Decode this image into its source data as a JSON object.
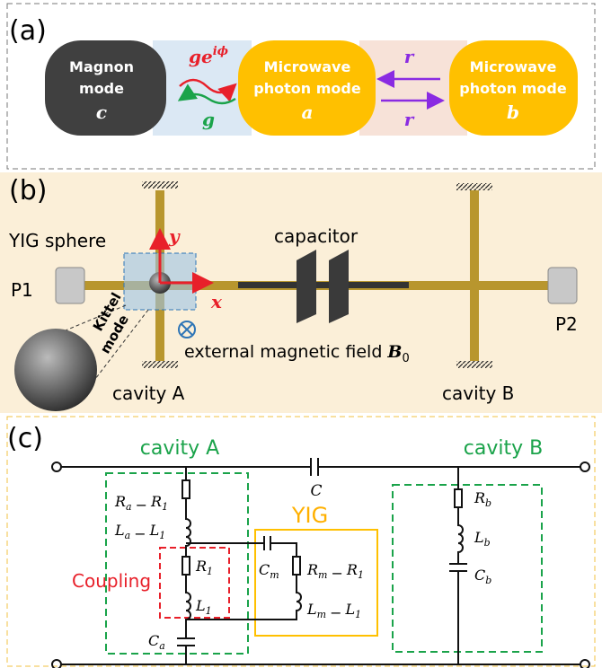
{
  "panel_a": {
    "label": "(a)",
    "nodes": [
      {
        "lines": [
          "Magnon",
          "mode"
        ],
        "symbol": "c"
      },
      {
        "lines": [
          "Microwave",
          "photon mode"
        ],
        "symbol": "a"
      },
      {
        "lines": [
          "Microwave",
          "photon mode"
        ],
        "symbol": "b"
      }
    ],
    "couplings": [
      {
        "base": "ge",
        "sup": "iϕ"
      },
      {
        "base": "g"
      },
      {
        "base": "r"
      },
      {
        "base": "r"
      }
    ]
  },
  "panel_b": {
    "label": "(b)",
    "yig": "YIG  sphere",
    "p1": "P1",
    "p2": "P2",
    "capacitor": "capacitor",
    "axis_y": "y",
    "axis_x": "x",
    "kittel": [
      "Kittel",
      "mode"
    ],
    "field": "external magnetic field ",
    "field_symbol": {
      "base": "B",
      "sub": "0"
    },
    "cavity_a": "cavity A",
    "cavity_b": "cavity  B"
  },
  "panel_c": {
    "label": "(c)",
    "cavity_a": "cavity A",
    "cavity_b": "cavity B",
    "yig": "YIG",
    "coupling": "Coupling",
    "capacitor": "C",
    "components": [
      {
        "terms": [
          [
            "R",
            "a"
          ],
          [
            "R",
            "1"
          ]
        ],
        "op": "−"
      },
      {
        "terms": [
          [
            "L",
            "a"
          ],
          [
            "L",
            "1"
          ]
        ],
        "op": "−"
      },
      {
        "terms": [
          [
            "R",
            "1"
          ]
        ]
      },
      {
        "terms": [
          [
            "L",
            "1"
          ]
        ]
      },
      {
        "terms": [
          [
            "C",
            "a"
          ]
        ]
      },
      {
        "terms": [
          [
            "C",
            "m"
          ]
        ]
      },
      {
        "terms": [
          [
            "R",
            "m"
          ],
          [
            "R",
            "1"
          ]
        ],
        "op": "−"
      },
      {
        "terms": [
          [
            "L",
            "m"
          ],
          [
            "L",
            "1"
          ]
        ],
        "op": "−"
      },
      {
        "terms": [
          [
            "R",
            "b"
          ]
        ]
      },
      {
        "terms": [
          [
            "L",
            "b"
          ]
        ]
      },
      {
        "terms": [
          [
            "C",
            "b"
          ]
        ]
      }
    ]
  }
}
